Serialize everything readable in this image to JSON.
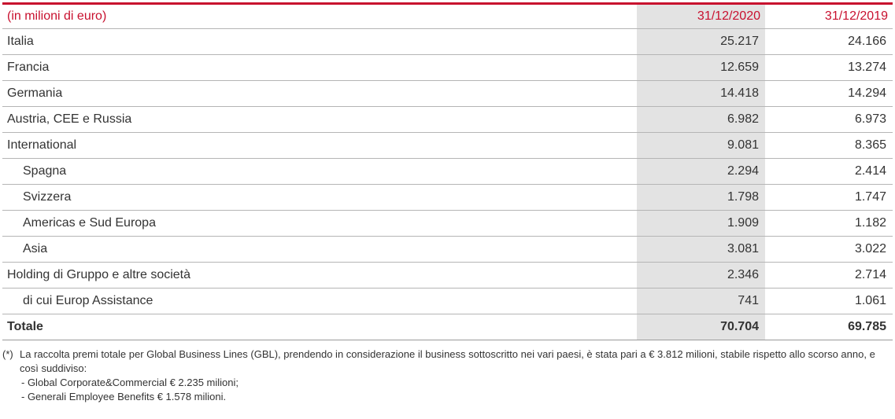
{
  "table": {
    "header": {
      "unit_label": "(in milioni di euro)",
      "col_2020": "31/12/2020",
      "col_2019": "31/12/2019"
    },
    "rows": [
      {
        "label": "Italia",
        "v2020": "25.217",
        "v2019": "24.166",
        "indent": false,
        "total": false
      },
      {
        "label": "Francia",
        "v2020": "12.659",
        "v2019": "13.274",
        "indent": false,
        "total": false
      },
      {
        "label": "Germania",
        "v2020": "14.418",
        "v2019": "14.294",
        "indent": false,
        "total": false
      },
      {
        "label": "Austria, CEE e Russia",
        "v2020": "6.982",
        "v2019": "6.973",
        "indent": false,
        "total": false
      },
      {
        "label": "International",
        "v2020": "9.081",
        "v2019": "8.365",
        "indent": false,
        "total": false
      },
      {
        "label": "Spagna",
        "v2020": "2.294",
        "v2019": "2.414",
        "indent": true,
        "total": false
      },
      {
        "label": "Svizzera",
        "v2020": "1.798",
        "v2019": "1.747",
        "indent": true,
        "total": false
      },
      {
        "label": "Americas e Sud Europa",
        "v2020": "1.909",
        "v2019": "1.182",
        "indent": true,
        "total": false
      },
      {
        "label": "Asia",
        "v2020": "3.081",
        "v2019": "3.022",
        "indent": true,
        "total": false
      },
      {
        "label": "Holding di Gruppo e altre società",
        "v2020": "2.346",
        "v2019": "2.714",
        "indent": false,
        "total": false
      },
      {
        "label": "di cui Europ Assistance",
        "v2020": "741",
        "v2019": "1.061",
        "indent": true,
        "total": false
      },
      {
        "label": "Totale",
        "v2020": "70.704",
        "v2019": "69.785",
        "indent": false,
        "total": true
      }
    ]
  },
  "footnote": {
    "marker": "(*)",
    "text": "La raccolta premi totale per Global Business Lines (GBL), prendendo in considerazione il business sottoscritto nei vari paesi, è stata pari a € 3.812 milioni, stabile rispetto allo scorso anno, e così suddiviso:",
    "items": [
      "- Global Corporate&Commercial € 2.235 milioni;",
      "- Generali Employee Benefits € 1.578 milioni."
    ]
  },
  "colors": {
    "accent": "#c8102e",
    "shade": "#e3e3e3",
    "rule": "#b5b5b5"
  }
}
